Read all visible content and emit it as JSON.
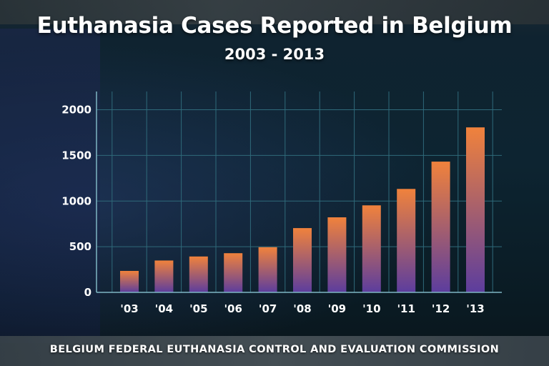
{
  "chart_data": {
    "type": "bar",
    "title": "Euthanasia Cases Reported in Belgium",
    "subtitle": "2003 - 2013",
    "categories": [
      "'03",
      "'04",
      "'05",
      "'06",
      "'07",
      "'08",
      "'09",
      "'10",
      "'11",
      "'12",
      "'13"
    ],
    "values": [
      235,
      349,
      393,
      429,
      495,
      704,
      822,
      953,
      1133,
      1432,
      1807
    ],
    "yticks": [
      0,
      500,
      1000,
      1500,
      2000
    ],
    "ylim": [
      0,
      2200
    ],
    "grid": true,
    "xlabel": "",
    "ylabel": "",
    "source": "BELGIUM FEDERAL EUTHANASIA CONTROL AND EVALUATION COMMISSION"
  },
  "colors": {
    "bar_top": "#f0823c",
    "bar_bottom": "#5c3d9e",
    "grid": "#2f6a7a",
    "axis": "#7fb6c4",
    "text": "#ffffff"
  }
}
